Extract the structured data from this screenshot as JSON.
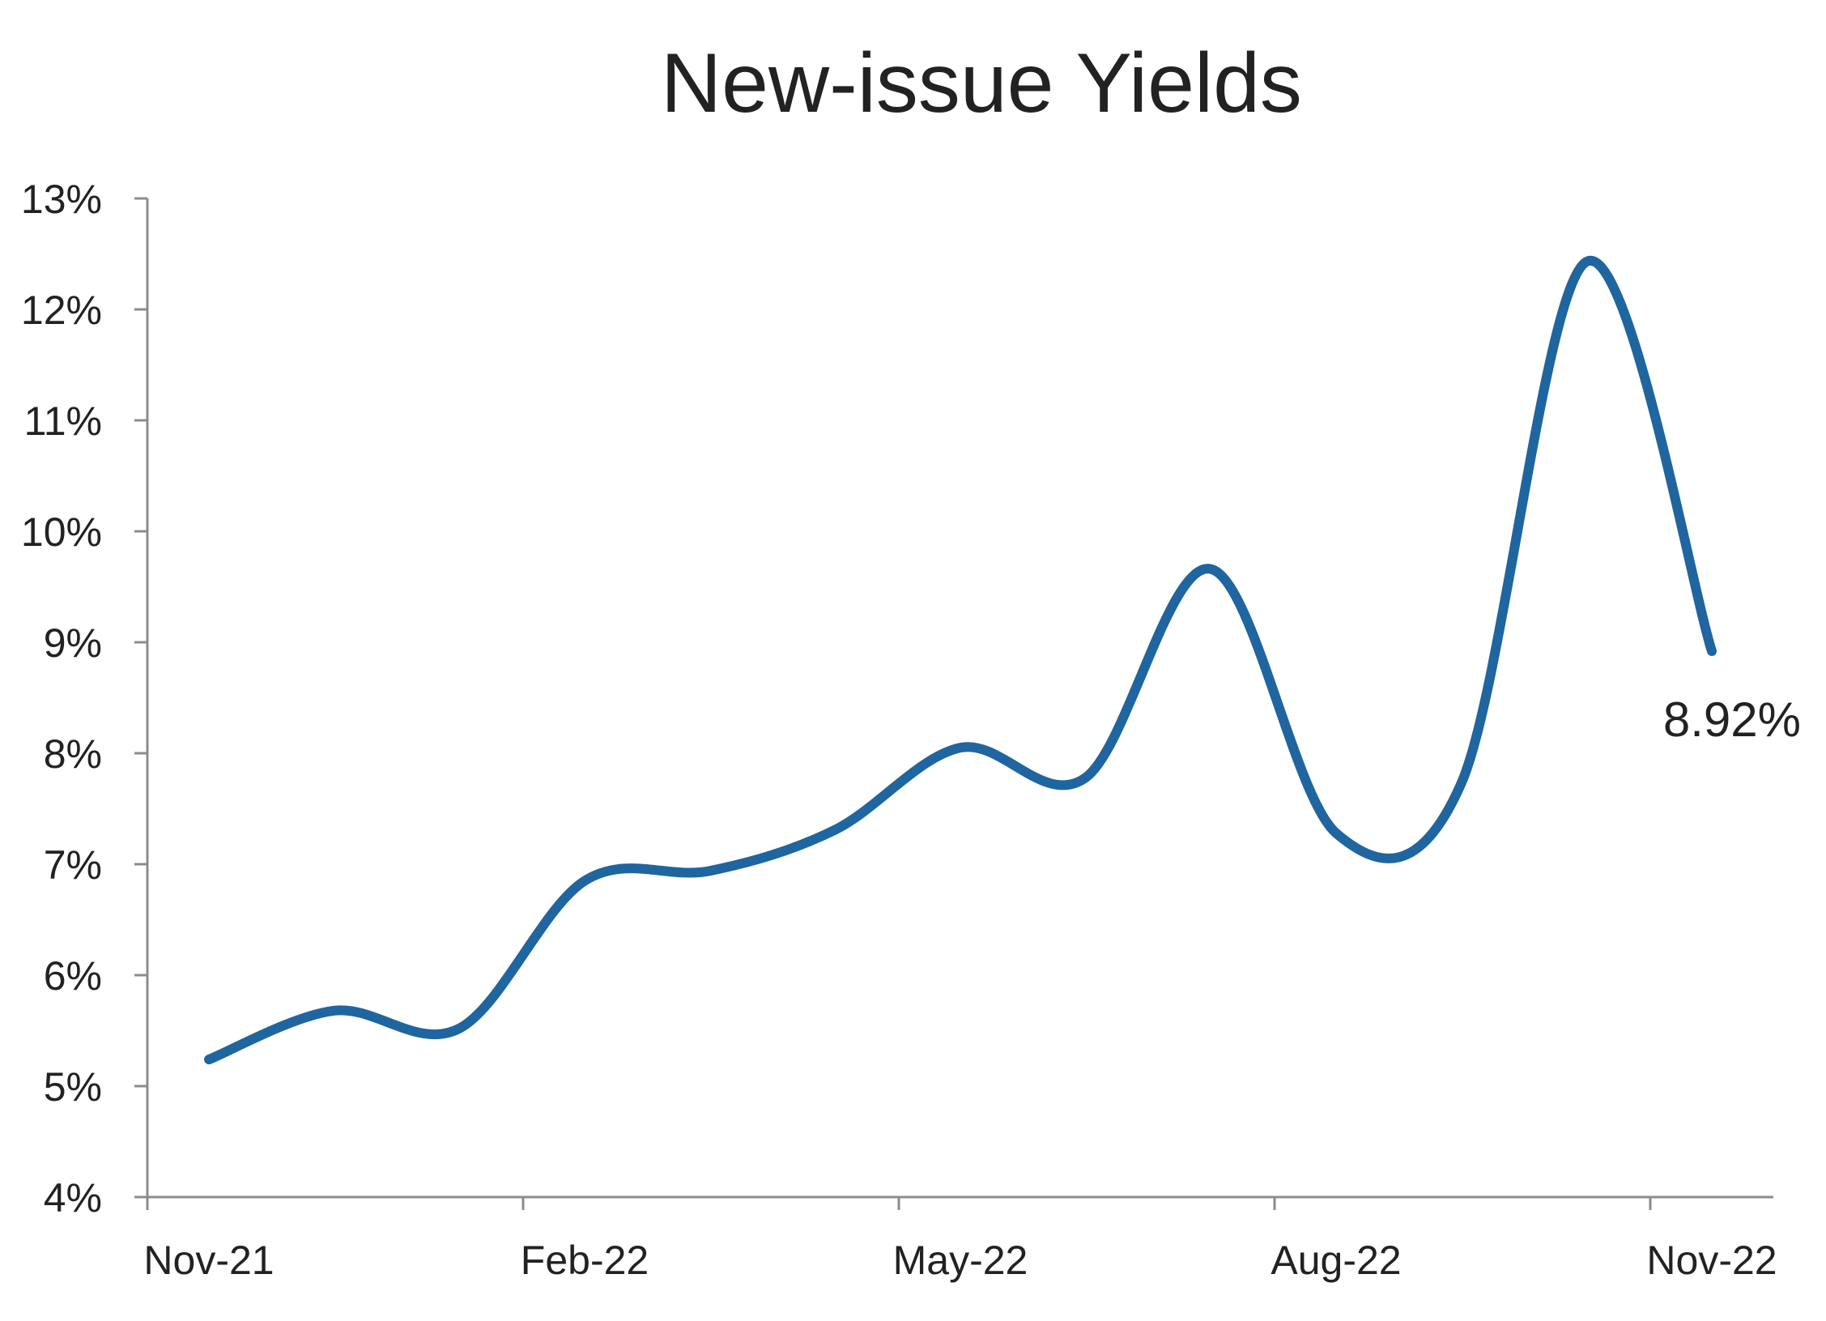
{
  "chart_data": {
    "type": "line",
    "title": "New-issue Yields",
    "xlabel": "",
    "ylabel": "",
    "x_tick_labels": [
      "Nov-21",
      "Feb-22",
      "May-22",
      "Aug-22",
      "Nov-22"
    ],
    "y_tick_labels": [
      "4%",
      "5%",
      "6%",
      "7%",
      "8%",
      "9%",
      "10%",
      "11%",
      "12%",
      "13%"
    ],
    "ylim": [
      4,
      13
    ],
    "grid": false,
    "legend": "none",
    "series": [
      {
        "color": "#1f65a0",
        "x": [
          "Nov-21",
          "Dec-21",
          "Jan-22",
          "Feb-22",
          "Mar-22",
          "Apr-22",
          "May-22",
          "Jun-22",
          "Jul-22",
          "Aug-22",
          "Sep-22",
          "Oct-22",
          "Nov-22"
        ],
        "y": [
          5.24,
          5.68,
          5.52,
          6.85,
          6.94,
          7.31,
          8.05,
          7.78,
          9.66,
          7.28,
          7.73,
          12.43,
          8.92
        ]
      }
    ],
    "annotations": [
      {
        "text": "8.92%",
        "anchor_x": "Nov-22",
        "anchor_y": 8.92
      }
    ]
  }
}
